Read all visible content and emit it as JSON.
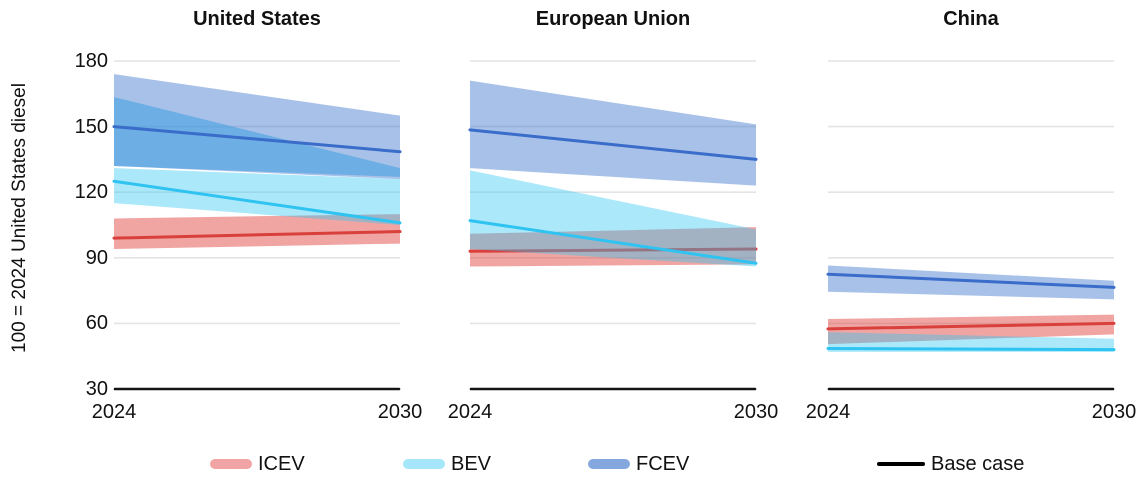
{
  "y_axis": {
    "label": "100 = 2024 United States diesel",
    "ticks": [
      "180",
      "150",
      "120",
      "90",
      "60",
      "30"
    ]
  },
  "x_axis": {
    "start": "2024",
    "end": "2030"
  },
  "legend": {
    "items": [
      {
        "label": "ICEV",
        "swatch": "band",
        "color": "#F0A4A3"
      },
      {
        "label": "BEV",
        "swatch": "band",
        "color": "#A5E6FB"
      },
      {
        "label": "FCEV",
        "swatch": "band",
        "color": "#84A8DE"
      },
      {
        "label": "Base case",
        "swatch": "line",
        "color": "#000000"
      }
    ]
  },
  "colors": {
    "grid": "#E4E4E4",
    "axis": "#141414",
    "icev_line": "#D9403C",
    "icev_band": "rgba(222,55,52,0.45)",
    "bev_line": "#2FC3F2",
    "bev_band": "rgba(45,198,243,0.40)",
    "fcev_line": "#3A6CC9",
    "fcev_band": "rgba(62,117,206,0.45)",
    "fcev_band_inner": "rgba(50,155,226,0.50)"
  },
  "chart_data": {
    "type": "area",
    "x": [
      2024,
      2030
    ],
    "xlabel": "",
    "ylabel": "100 = 2024 United States diesel",
    "yticks": [
      180,
      150,
      120,
      90,
      60,
      30
    ],
    "ylim": [
      30,
      185
    ],
    "grid": true,
    "legend_position": "bottom",
    "panels": [
      {
        "title": "United States",
        "series": [
          {
            "name": "ICEV",
            "line": [
              99,
              102
            ],
            "band_low": [
              94,
              96.5
            ],
            "band_high": [
              108,
              110
            ]
          },
          {
            "name": "BEV",
            "line": [
              125,
              106
            ],
            "band_low": [
              115,
              105
            ],
            "band_high": [
              131,
              126
            ]
          },
          {
            "name": "FCEV",
            "line": [
              150,
              138.5
            ],
            "band_low": [
              132,
              126
            ],
            "band_high": [
              174,
              155
            ],
            "band2_low": [
              132,
              127
            ],
            "band2_high": [
              163.5,
              131
            ]
          }
        ]
      },
      {
        "title": "European Union",
        "series": [
          {
            "name": "ICEV",
            "line": [
              93,
              94
            ],
            "band_low": [
              86,
              87
            ],
            "band_high": [
              101,
              104
            ]
          },
          {
            "name": "BEV",
            "line": [
              107,
              87.5
            ],
            "band_low": [
              94,
              86
            ],
            "band_high": [
              130,
              103
            ]
          },
          {
            "name": "FCEV",
            "line": [
              148.5,
              135
            ],
            "band_low": [
              131,
              123
            ],
            "band_high": [
              171,
              151
            ]
          }
        ]
      },
      {
        "title": "China",
        "series": [
          {
            "name": "ICEV",
            "line": [
              57.5,
              60
            ],
            "band_low": [
              50.5,
              55
            ],
            "band_high": [
              62,
              64
            ]
          },
          {
            "name": "BEV",
            "line": [
              48.5,
              48
            ],
            "band_low": [
              47,
              47
            ],
            "band_high": [
              56,
              53
            ]
          },
          {
            "name": "FCEV",
            "line": [
              82.5,
              76.5
            ],
            "band_low": [
              74.5,
              71
            ],
            "band_high": [
              86.5,
              79.5
            ]
          }
        ]
      }
    ]
  }
}
